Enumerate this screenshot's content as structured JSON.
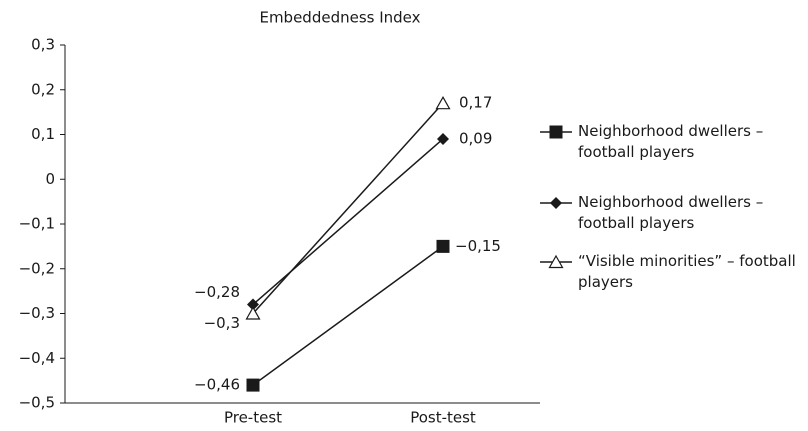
{
  "chart_data": {
    "type": "line",
    "title": "Embeddedness Index",
    "categories": [
      "Pre-test",
      "Post-test"
    ],
    "series": [
      {
        "name": "Neighborhood dwellers – football players",
        "color": "#1a1a1a",
        "marker": "square",
        "values": [
          -0.46,
          -0.15
        ],
        "value_labels": [
          "−0,46",
          "−0,15"
        ]
      },
      {
        "name": "Neighborhood dwellers – football players",
        "color": "#1a1a1a",
        "marker": "diamond",
        "values": [
          -0.28,
          0.09
        ],
        "value_labels": [
          "−0,28",
          "0,09"
        ]
      },
      {
        "name": "“Visible minorities” – football players",
        "color": "#1a1a1a",
        "marker": "triangle",
        "values": [
          -0.3,
          0.17
        ],
        "value_labels": [
          "−0,3",
          "0,17"
        ]
      }
    ],
    "ylim": [
      -0.5,
      0.3
    ],
    "yticks": [
      {
        "value": -0.5,
        "label": "−0,5"
      },
      {
        "value": -0.4,
        "label": "−0,4"
      },
      {
        "value": -0.3,
        "label": "−0,3"
      },
      {
        "value": -0.2,
        "label": "−0,2"
      },
      {
        "value": -0.1,
        "label": "−0,1"
      },
      0,
      {
        "value": 0.1,
        "label": "0,1"
      },
      {
        "value": 0.2,
        "label": "0,2"
      },
      {
        "value": 0.3,
        "label": "0,3"
      }
    ],
    "legend": "right"
  }
}
